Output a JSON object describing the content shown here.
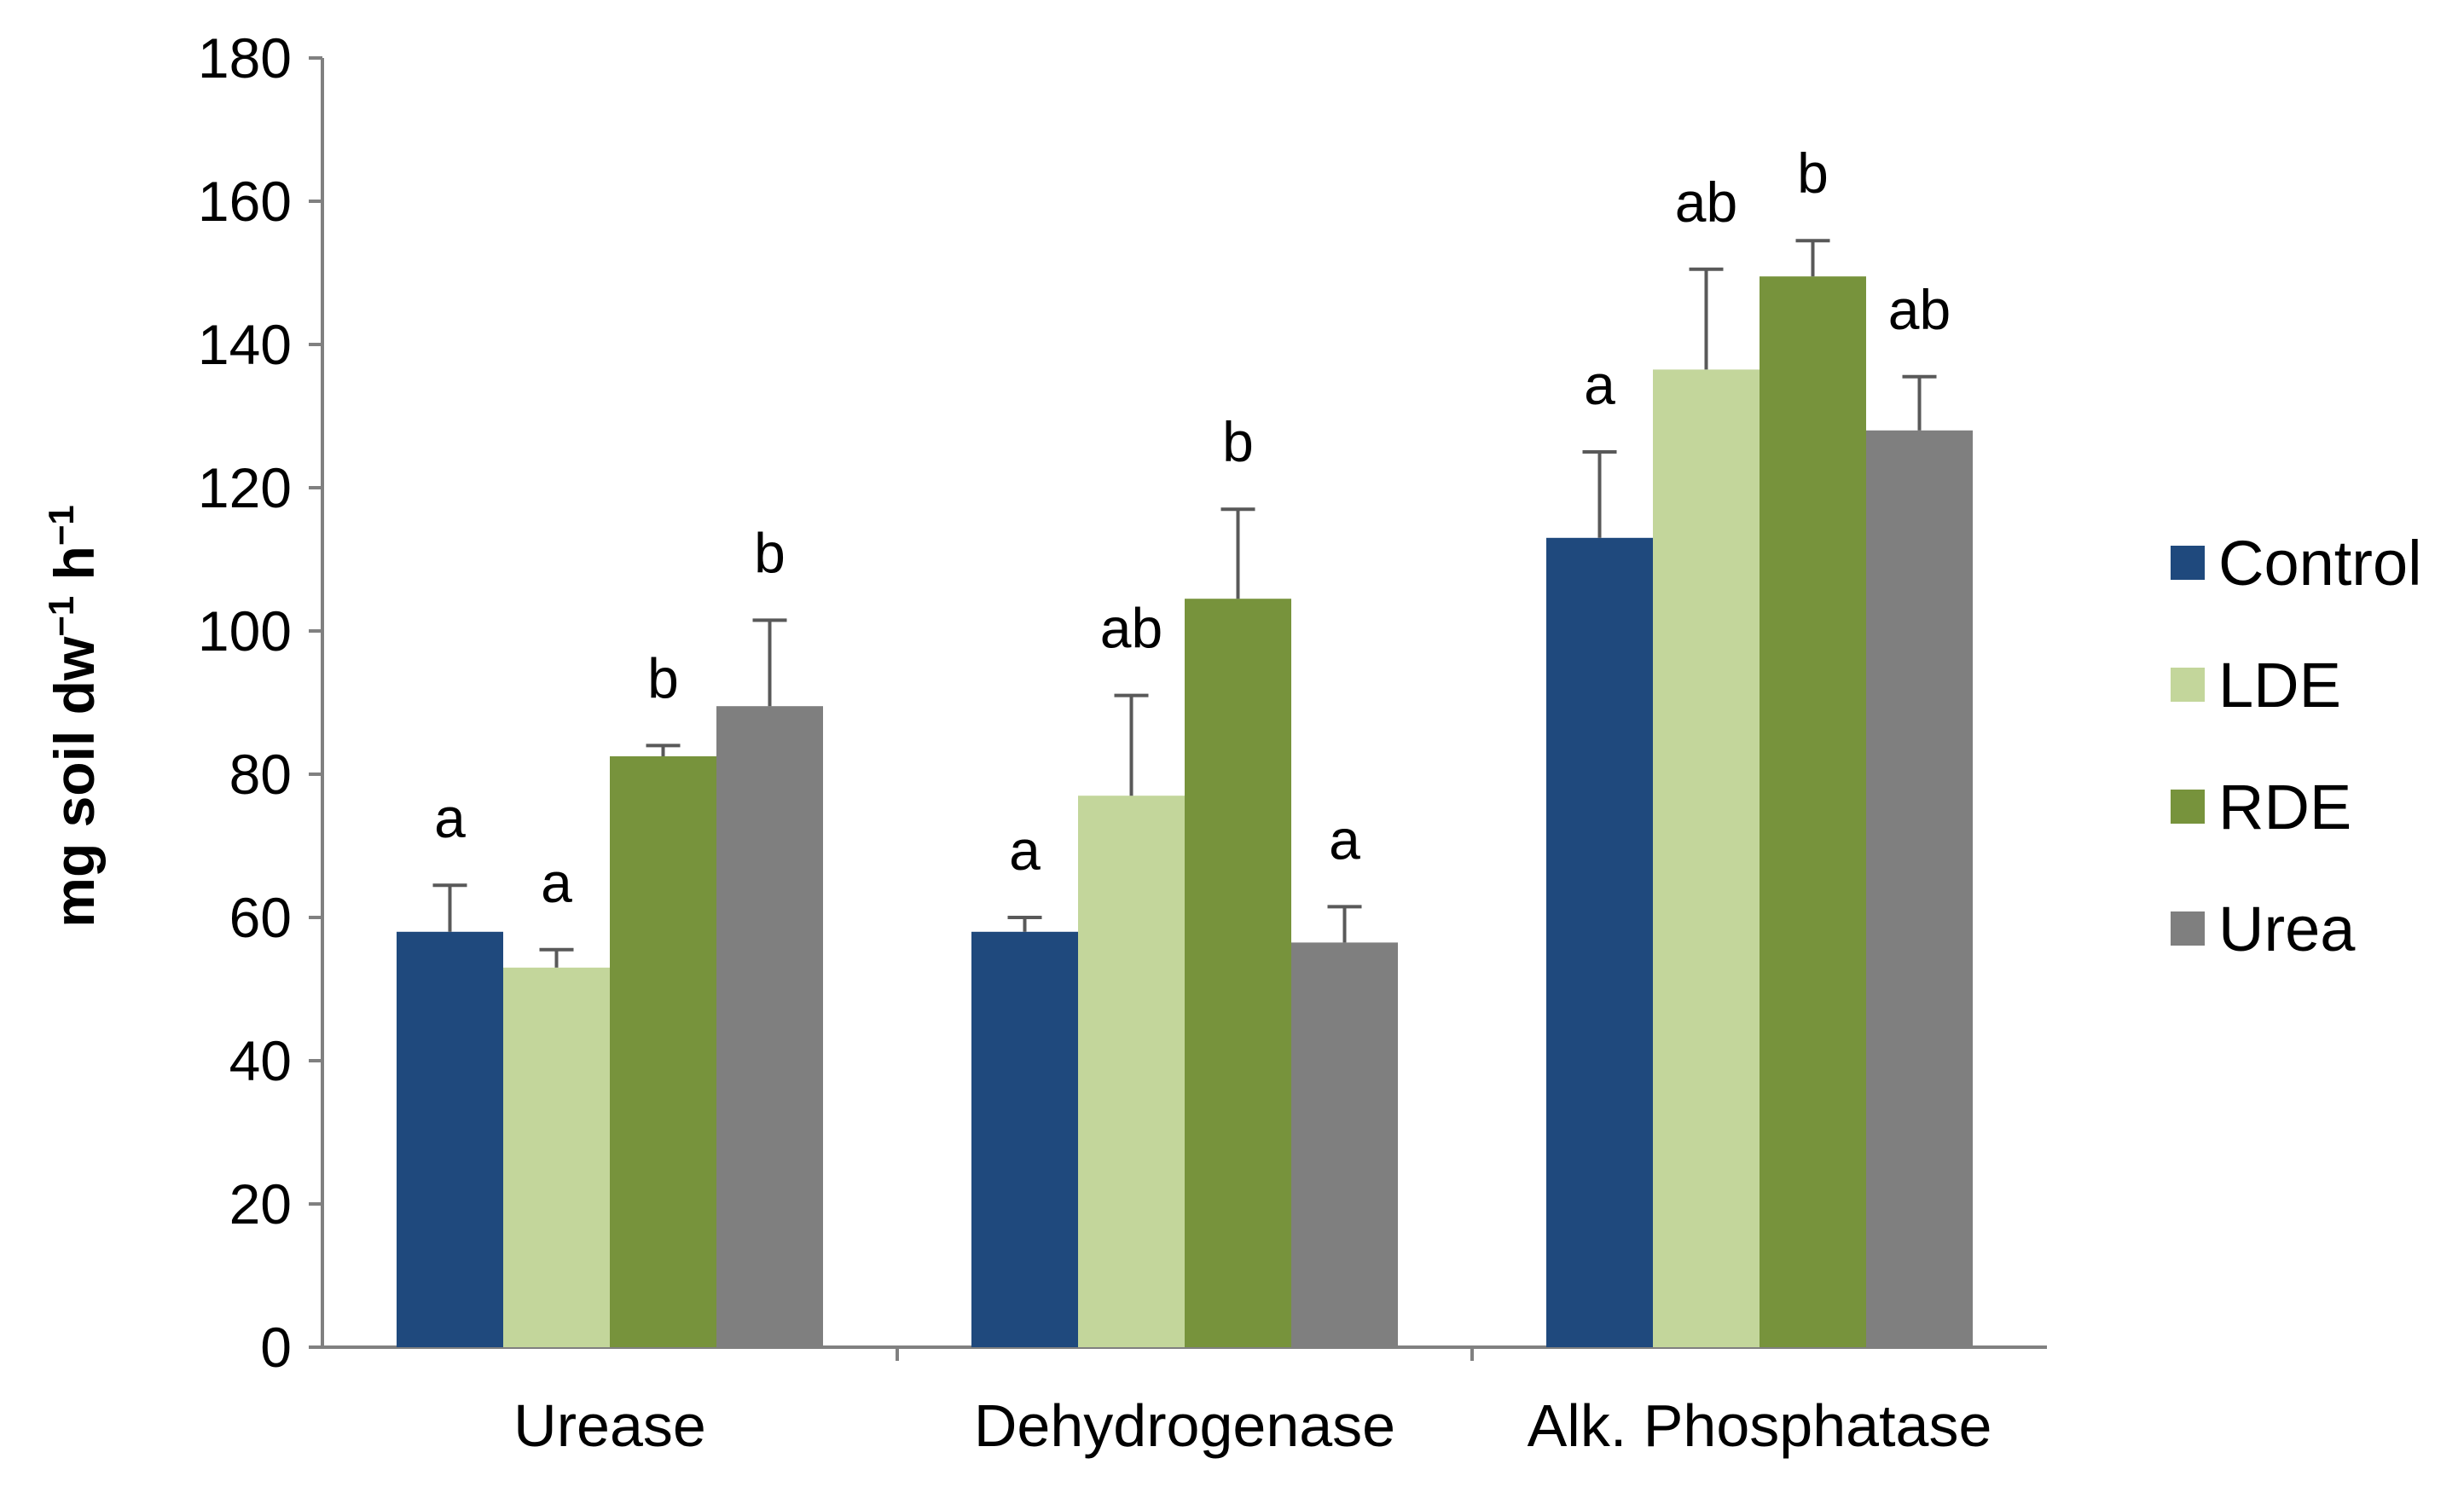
{
  "chart_data": {
    "type": "bar",
    "title": "",
    "xlabel": "",
    "ylabel": "mg soil dw",
    "ylabel_unit_1": "−1",
    "ylabel_h": " h",
    "ylabel_unit_2": "−1",
    "ylim": [
      0,
      180
    ],
    "yticks": [
      0,
      20,
      40,
      60,
      80,
      100,
      120,
      140,
      160,
      180
    ],
    "categories": [
      "Urease",
      "Dehydrogenase",
      "Alk. Phosphatase"
    ],
    "legend_position": "right",
    "series": [
      {
        "name": "Control",
        "color": "#1f497d",
        "values": [
          58,
          58,
          113
        ],
        "errors": [
          6.5,
          2,
          12
        ],
        "letters": [
          "a",
          "a",
          "a"
        ]
      },
      {
        "name": "LDE",
        "color": "#c3d69b",
        "values": [
          53,
          77,
          136.5
        ],
        "errors": [
          2.5,
          14,
          14
        ],
        "letters": [
          "a",
          "ab",
          "ab"
        ]
      },
      {
        "name": "RDE",
        "color": "#77933c",
        "values": [
          82.5,
          104.5,
          149.5
        ],
        "errors": [
          1.5,
          12.5,
          5
        ],
        "letters": [
          "b",
          "b",
          "b"
        ]
      },
      {
        "name": "Urea",
        "color": "#7f7f7f",
        "values": [
          89.5,
          56.5,
          128
        ],
        "errors": [
          12,
          5,
          7.5
        ],
        "letters": [
          "b",
          "a",
          "ab"
        ]
      }
    ]
  }
}
